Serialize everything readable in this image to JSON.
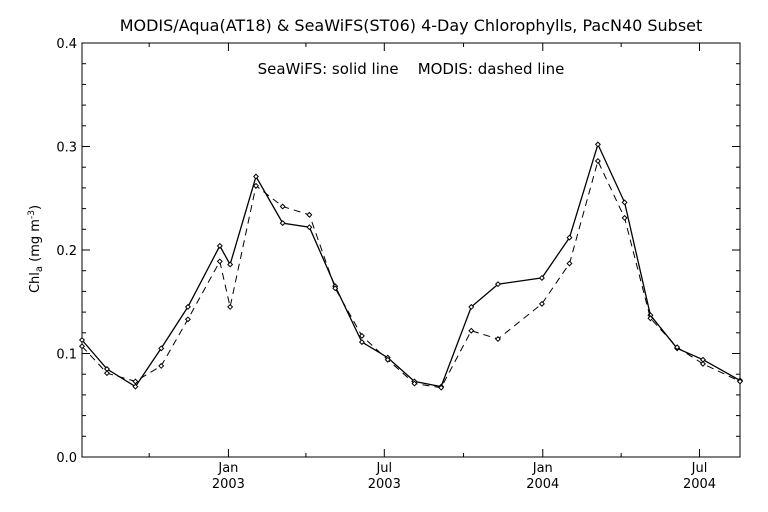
{
  "chart_data": {
    "type": "line",
    "title": "MODIS/Aqua(AT18) & SeaWiFS(ST06) 4-Day Chlorophylls, PacN40 Subset",
    "annotation": "SeaWiFS: solid line    MODIS: dashed line",
    "ylabel": {
      "main": "Chl",
      "sub": "a",
      "unit": " (mg m",
      "sup": "-3",
      "close": ")"
    },
    "ylim": [
      0.0,
      0.4
    ],
    "yticks": [
      {
        "value": 0.0,
        "label": "0.0"
      },
      {
        "value": 0.1,
        "label": "0.1"
      },
      {
        "value": 0.2,
        "label": "0.2"
      },
      {
        "value": 0.3,
        "label": "0.3"
      },
      {
        "value": 0.4,
        "label": "0.4"
      }
    ],
    "xlim": [
      "2002-07-15",
      "2004-08-17"
    ],
    "xticks": [
      {
        "date": "2003-01-01",
        "top": "Jan",
        "bottom": "2003"
      },
      {
        "date": "2003-07-01",
        "top": "Jul",
        "bottom": "2003"
      },
      {
        "date": "2004-01-01",
        "top": "Jan",
        "bottom": "2004"
      },
      {
        "date": "2004-07-01",
        "top": "Jul",
        "bottom": "2004"
      }
    ],
    "series": [
      {
        "name": "SeaWiFS",
        "style": "solid",
        "points": [
          [
            "2002-07-15",
            0.113
          ],
          [
            "2002-08-13",
            0.085
          ],
          [
            "2002-09-15",
            0.068
          ],
          [
            "2002-10-15",
            0.105
          ],
          [
            "2002-11-15",
            0.145
          ],
          [
            "2002-12-22",
            0.204
          ],
          [
            "2003-01-03",
            0.186
          ],
          [
            "2003-02-02",
            0.271
          ],
          [
            "2003-03-05",
            0.226
          ],
          [
            "2003-04-05",
            0.222
          ],
          [
            "2003-05-05",
            0.165
          ],
          [
            "2003-06-05",
            0.111
          ],
          [
            "2003-07-05",
            0.096
          ],
          [
            "2003-08-05",
            0.073
          ],
          [
            "2003-09-05",
            0.068
          ],
          [
            "2003-10-10",
            0.145
          ],
          [
            "2003-11-10",
            0.167
          ],
          [
            "2003-12-31",
            0.173
          ],
          [
            "2004-02-01",
            0.212
          ],
          [
            "2004-03-05",
            0.302
          ],
          [
            "2004-04-05",
            0.246
          ],
          [
            "2004-05-05",
            0.137
          ],
          [
            "2004-06-05",
            0.105
          ],
          [
            "2004-07-05",
            0.094
          ],
          [
            "2004-08-17",
            0.074
          ]
        ]
      },
      {
        "name": "MODIS",
        "style": "dashed",
        "points": [
          [
            "2002-07-15",
            0.107
          ],
          [
            "2002-08-13",
            0.081
          ],
          [
            "2002-09-15",
            0.073
          ],
          [
            "2002-10-15",
            0.088
          ],
          [
            "2002-11-15",
            0.133
          ],
          [
            "2002-12-22",
            0.189
          ],
          [
            "2003-01-03",
            0.145
          ],
          [
            "2003-02-02",
            0.262
          ],
          [
            "2003-03-05",
            0.242
          ],
          [
            "2003-04-05",
            0.234
          ],
          [
            "2003-05-05",
            0.163
          ],
          [
            "2003-06-05",
            0.117
          ],
          [
            "2003-07-05",
            0.094
          ],
          [
            "2003-08-05",
            0.071
          ],
          [
            "2003-09-05",
            0.067
          ],
          [
            "2003-10-10",
            0.122
          ],
          [
            "2003-11-10",
            0.114
          ],
          [
            "2003-12-31",
            0.148
          ],
          [
            "2004-02-01",
            0.187
          ],
          [
            "2004-03-05",
            0.286
          ],
          [
            "2004-04-05",
            0.231
          ],
          [
            "2004-05-05",
            0.134
          ],
          [
            "2004-06-05",
            0.106
          ],
          [
            "2004-07-05",
            0.09
          ],
          [
            "2004-08-17",
            0.073
          ]
        ]
      }
    ]
  }
}
